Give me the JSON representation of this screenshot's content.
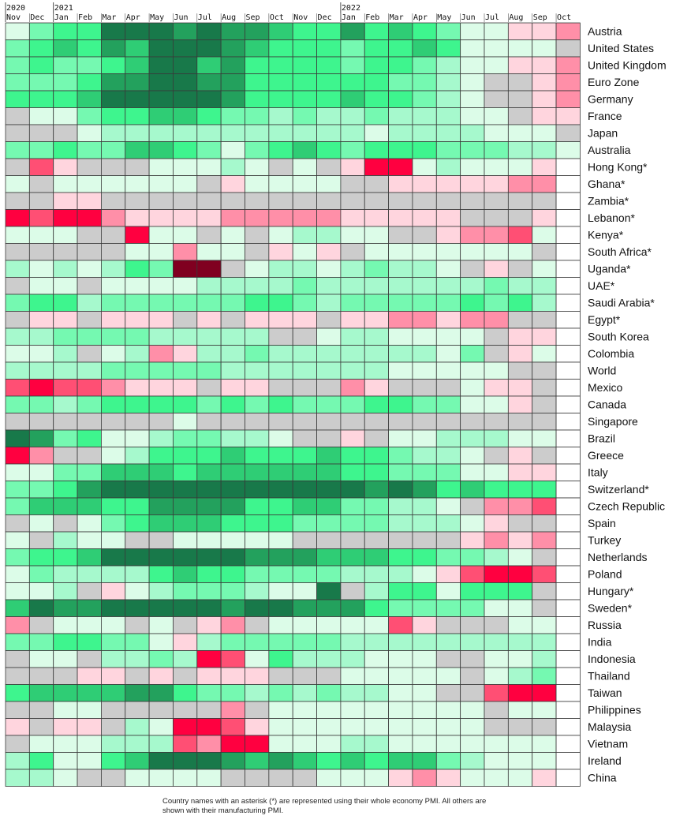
{
  "colors": {
    "-4": "#ff0040",
    "-3": "#ff4f74",
    "-2": "#ff8fa8",
    "-1": "#ffd5de",
    "0": "#cccccc",
    "1": "#dcfce8",
    "2": "#a6f9cd",
    "3": "#75f9b1",
    "4": "#3ef58e",
    "5": "#2fcd75",
    "6": "#23a15d",
    "7": "#18794a",
    "8": "#800020",
    "B": "#ffffff"
  },
  "chart_data": {
    "type": "heatmap",
    "years": [
      {
        "label": "2020",
        "month_index": 0
      },
      {
        "label": "2021",
        "month_index": 2
      },
      {
        "label": "2022",
        "month_index": 14
      }
    ],
    "months": [
      "Nov",
      "Dec",
      "Jan",
      "Feb",
      "Mar",
      "Apr",
      "May",
      "Jun",
      "Jul",
      "Aug",
      "Sep",
      "Oct",
      "Nov",
      "Dec",
      "Jan",
      "Feb",
      "Mar",
      "Apr",
      "May",
      "Jun",
      "Jul",
      "Aug",
      "Sep",
      "Oct"
    ],
    "scale_note": "cell codes: -4 deep contraction … 0 neutral/grey … 7 strong expansion; 8 extreme contraction (dark maroon); B blank",
    "rows": [
      {
        "country": "Austria",
        "cells": "1 3 4 4 7 7 7 6 7 6 6 5 4 4 6 4 5 4 3 1 1 -1 -1 -2"
      },
      {
        "country": "United States",
        "cells": "3 4 5 4 6 5 7 7 7 6 5 4 4 4 3 4 4 5 4 1 1 1 1 0"
      },
      {
        "country": "United Kingdom",
        "cells": "3 4 3 3 4 5 7 7 5 6 4 4 4 4 3 4 4 3 2 1 1 -1 -1 -2"
      },
      {
        "country": "Euro Zone",
        "cells": "3 3 3 4 6 6 7 7 6 6 4 4 4 4 4 4 3 3 2 1 0 0 -1 -2"
      },
      {
        "country": "Germany",
        "cells": "4 4 4 5 7 7 7 7 7 6 4 4 4 4 5 4 4 3 2 1 0 0 -1 -2"
      },
      {
        "country": "France",
        "cells": "0 1 1 3 4 4 5 5 4 3 3 2 3 2 2 3 2 2 2 1 1 0 -1 -1"
      },
      {
        "country": "Japan",
        "cells": "0 0 0 1 2 2 2 2 2 2 2 2 2 2 2 1 2 2 2 2 1 1 1 0"
      },
      {
        "country": "Australia",
        "cells": "3 3 4 3 3 5 5 4 3 1 3 4 5 4 3 4 4 4 3 3 3 2 2 1"
      },
      {
        "country": "Hong Kong*",
        "cells": "0 -3 -1 0 0 0 1 1 1 2 1 0 1 0 -1 -4 -4 1 2 1 1 1 -1 B"
      },
      {
        "country": "Ghana*",
        "cells": "1 0 1 1 1 1 1 1 0 -1 1 1 1 1 0 0 -1 -1 -1 -1 -1 -2 -2 B"
      },
      {
        "country": "Zambia*",
        "cells": "0 0 -1 -1 0 0 0 0 0 0 0 0 0 0 0 0 0 0 0 0 0 0 0 B"
      },
      {
        "country": "Lebanon*",
        "cells": "-4 -3 -4 -4 -2 -1 -1 -1 -1 -2 -2 -2 -2 -2 -1 -1 -1 -1 -1 0 0 0 -1 B"
      },
      {
        "country": "Kenya*",
        "cells": "1 1 1 0 0 -4 1 1 0 1 0 1 2 2 1 1 0 0 -1 -2 -2 -3 1 B"
      },
      {
        "country": "South Africa*",
        "cells": "0 0 0 0 0 1 1 -2 1 1 0 -1 1 -1 0 1 1 1 1 1 1 1 0 B"
      },
      {
        "country": "Uganda*",
        "cells": "2 1 2 1 2 4 3 8 8 0 1 2 2 1 2 3 2 2 1 0 -1 0 1 B"
      },
      {
        "country": "UAE*",
        "cells": "0 1 1 0 1 1 1 1 2 2 2 2 3 2 2 2 2 2 2 2 3 2 2 B"
      },
      {
        "country": "Saudi Arabia*",
        "cells": "3 4 4 2 3 3 3 3 3 3 4 4 3 2 3 3 3 3 3 4 3 4 2 B"
      },
      {
        "country": "Egypt*",
        "cells": "0 -1 -1 0 -1 -1 -1 0 -1 0 -1 -1 -1 0 -1 -1 -2 -2 -1 -2 -2 0 0 B"
      },
      {
        "country": "South Korea",
        "cells": "2 2 3 3 3 3 2 2 2 2 2 0 0 1 2 2 1 1 1 1 0 -1 -1 B"
      },
      {
        "country": "Colombia",
        "cells": "1 1 2 0 1 2 -2 -1 2 2 3 2 2 2 2 2 2 2 1 3 0 -1 1 B"
      },
      {
        "country": "World",
        "cells": "2 2 2 2 3 3 3 3 3 2 2 2 2 2 2 2 1 1 1 1 1 0 0 B"
      },
      {
        "country": "Mexico",
        "cells": "-3 -4 -3 -3 -2 -1 -1 -1 0 -1 -1 0 0 0 -2 -1 0 0 0 1 -1 -1 0 B"
      },
      {
        "country": "Canada",
        "cells": "3 3 2 3 4 4 4 4 3 4 3 4 3 3 3 4 4 3 3 1 1 -1 0 B"
      },
      {
        "country": "Singapore",
        "cells": "0 0 0 0 0 0 0 1 0 0 0 0 0 0 0 0 0 0 0 0 0 0 0 B"
      },
      {
        "country": "Brazil",
        "cells": "7 6 3 4 1 1 2 3 3 2 2 1 0 0 -1 0 1 1 2 2 2 1 1 B"
      },
      {
        "country": "Greece",
        "cells": "-4 -2 0 0 1 2 4 4 4 5 4 4 4 5 4 4 3 2 2 1 0 -1 0 B"
      },
      {
        "country": "Italy",
        "cells": "1 1 3 3 5 5 5 4 5 5 5 5 5 5 4 4 3 3 3 1 1 -1 -1 B"
      },
      {
        "country": "Switzerland*",
        "cells": "3 3 4 6 7 7 7 7 7 7 7 7 7 7 7 6 7 6 4 5 4 4 4 B"
      },
      {
        "country": "Czech Republic",
        "cells": "3 5 5 5 4 4 6 6 6 6 4 4 5 5 3 3 2 2 1 0 -2 -2 -3 B"
      },
      {
        "country": "Spain",
        "cells": "0 1 0 1 3 4 5 5 5 4 4 4 3 3 3 3 2 2 2 1 -1 0 0 B"
      },
      {
        "country": "Turkey",
        "cells": "1 0 2 1 1 0 0 1 1 1 1 1 0 0 0 0 0 0 0 -1 -2 -1 -2 B"
      },
      {
        "country": "Netherlands",
        "cells": "3 4 4 5 7 7 7 7 7 7 6 6 6 5 5 5 4 4 3 3 2 1 0 B"
      },
      {
        "country": "Poland",
        "cells": "1 3 2 2 2 2 4 5 4 4 3 3 3 3 2 2 2 1 -1 -3 -4 -4 -3 B"
      },
      {
        "country": "Hungary*",
        "cells": "1 1 2 0 -1 1 2 3 3 3 2 1 1 7 0 2 4 4 1 4 4 4 0 B"
      },
      {
        "country": "Sweden*",
        "cells": "5 7 6 6 7 7 7 7 7 6 7 7 6 6 6 4 3 3 3 3 1 1 0 B"
      },
      {
        "country": "Russia",
        "cells": "-2 0 1 1 1 0 1 0 -1 -2 0 1 1 1 1 1 -3 -1 0 0 0 1 1 B"
      },
      {
        "country": "India",
        "cells": "3 3 4 4 3 3 1 -1 2 3 3 3 3 3 2 2 2 2 2 2 2 2 2 B"
      },
      {
        "country": "Indonesia",
        "cells": "0 1 1 0 2 2 3 2 -4 -3 1 4 2 2 2 1 1 1 0 0 1 1 2 B"
      },
      {
        "country": "Thailand",
        "cells": "0 0 0 -1 -1 0 -1 0 -1 -1 -1 0 0 0 1 1 1 1 1 0 1 2 3 B"
      },
      {
        "country": "Taiwan",
        "cells": "4 5 5 5 5 6 6 4 3 3 2 3 2 3 2 2 1 1 0 0 -3 -4 -4 B"
      },
      {
        "country": "Philippines",
        "cells": "0 0 1 1 0 0 0 0 0 -2 0 1 1 1 1 1 1 1 1 1 0 1 1 B"
      },
      {
        "country": "Malaysia",
        "cells": "-1 0 -1 -1 0 2 1 -4 -4 -3 -1 1 1 1 1 1 1 1 1 1 0 0 0 B"
      },
      {
        "country": "Vietnam",
        "cells": "0 1 1 1 2 2 2 -3 -2 -4 -4 1 1 1 2 2 1 1 1 1 1 1 1 B"
      },
      {
        "country": "Ireland",
        "cells": "2 4 1 1 4 5 7 7 7 6 5 6 5 4 5 4 5 5 3 2 1 1 1 B"
      },
      {
        "country": "China",
        "cells": "2 2 1 0 0 1 1 1 1 0 0 0 0 1 1 1 -1 -2 -1 1 1 1 -1 B"
      }
    ]
  },
  "footnote": {
    "line1": "Country names with an asterisk (*) are represented using their whole economy PMI. All others are",
    "line2": "shown with their manufacturing PMI."
  }
}
